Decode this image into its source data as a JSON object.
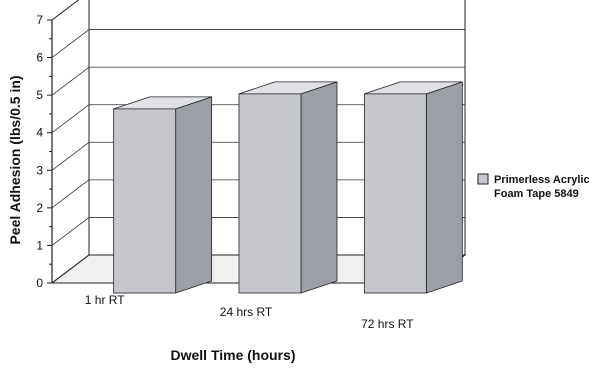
{
  "chart_data": {
    "type": "bar",
    "style": "3d",
    "categories": [
      "1 hr RT",
      "24 hrs RT",
      "72 hrs RT"
    ],
    "series": [
      {
        "name": "Primerless Acrylic Foam Tape 5849",
        "values": [
          4.9,
          5.3,
          5.3
        ]
      }
    ],
    "xlabel": "Dwell Time (hours)",
    "ylabel": "Peel Adhesion (lbs/0.5 in)",
    "ylim": [
      0,
      7
    ],
    "yticks": [
      0,
      1,
      2,
      3,
      4,
      5,
      6,
      7
    ],
    "grid": true,
    "legend_position": "right",
    "legend_lines": [
      "Primerless Acrylic",
      "Foam Tape 5849"
    ],
    "colors": {
      "bar_front": "#c5c7cc",
      "bar_side": "#9c9fa5",
      "bar_top": "#dfe1e4",
      "wall": "#ffffff",
      "floor": "#f0f0f0",
      "line": "#222222",
      "grid": "#333333"
    }
  }
}
